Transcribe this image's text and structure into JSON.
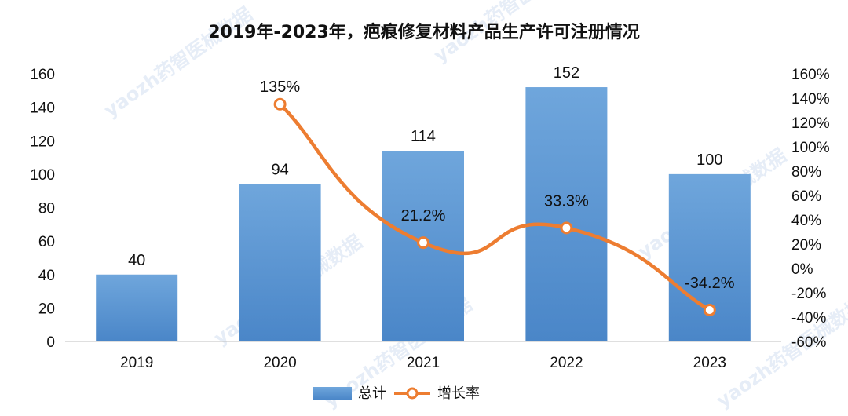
{
  "watermark": "yaozh药智医械数据",
  "chart_data": {
    "type": "bar",
    "title": "2019年-2023年，疤痕修复材料产品生产许可注册情况",
    "categories": [
      "2019",
      "2020",
      "2021",
      "2022",
      "2023"
    ],
    "series": [
      {
        "name": "总计",
        "type": "bar",
        "axis": "left",
        "values": [
          40,
          94,
          114,
          152,
          100
        ],
        "labels": [
          "40",
          "94",
          "114",
          "152",
          "100"
        ],
        "color": "#5b9bd5"
      },
      {
        "name": "增长率",
        "type": "line",
        "axis": "right",
        "values": [
          null,
          135,
          21.2,
          33.3,
          -34.2
        ],
        "labels": [
          "",
          "135%",
          "21.2%",
          "33.3%",
          "-34.2%"
        ],
        "color": "#ed7d31"
      }
    ],
    "y_left": {
      "min": 0,
      "max": 160,
      "ticks": [
        "0",
        "20",
        "40",
        "60",
        "80",
        "100",
        "120",
        "140",
        "160"
      ]
    },
    "y_right": {
      "min": -60,
      "max": 160,
      "ticks": [
        "-60%",
        "-40%",
        "-20%",
        "0%",
        "20%",
        "40%",
        "60%",
        "80%",
        "100%",
        "120%",
        "140%",
        "160%"
      ]
    },
    "legend_position": "bottom"
  }
}
